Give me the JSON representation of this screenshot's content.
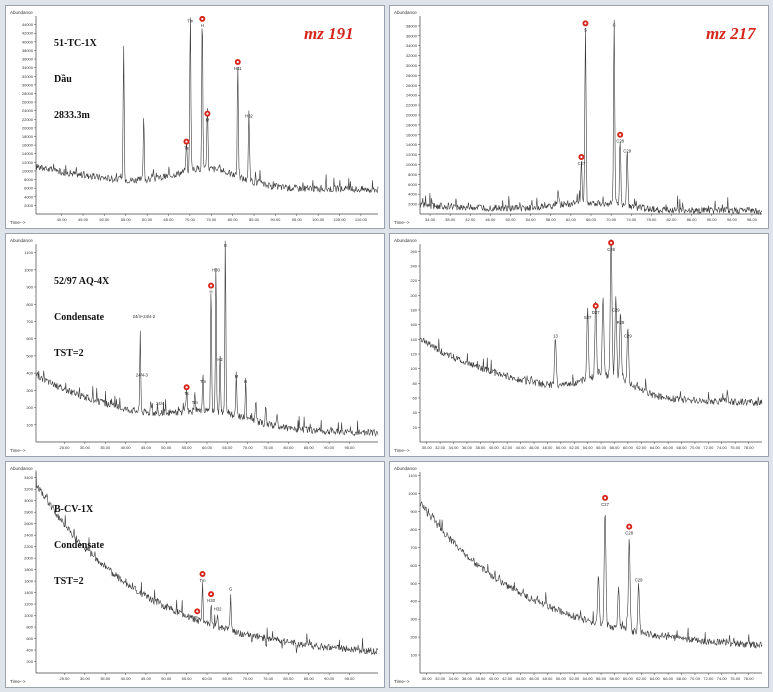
{
  "figure": {
    "rows": [
      {
        "sample_name": "51-TC-1X",
        "sample_type": "Dầu",
        "sample_extra": "2833.3m"
      },
      {
        "sample_name": "52/97 AQ-4X",
        "sample_type": "Condensate",
        "sample_extra": "TST=2"
      },
      {
        "sample_name": "B-CV-1X",
        "sample_type": "Condensate",
        "sample_extra": "TST=2"
      }
    ],
    "col_titles": [
      "mz 191",
      "mz 217"
    ],
    "colors": {
      "trace": "#3a3a3a",
      "marker": "#d6261c",
      "frame": "#9aa3ad"
    }
  },
  "chart_data": [
    {
      "type": "line",
      "row": 0,
      "col": 0,
      "ylabel": "Abundance",
      "xlabel": "Time-->",
      "xlim": [
        34,
        114
      ],
      "ylim": [
        0,
        46000
      ],
      "x_ticks": [
        "40.00",
        "45.00",
        "50.00",
        "55.00",
        "60.00",
        "65.00",
        "70.00",
        "75.00",
        "80.00",
        "85.00",
        "90.00",
        "95.00",
        "100.00",
        "105.00",
        "110.00"
      ],
      "y_ticks": [
        "2000",
        "4000",
        "6000",
        "8000",
        "10000",
        "12000",
        "14000",
        "16000",
        "18000",
        "20000",
        "22000",
        "24000",
        "26000",
        "28000",
        "30000",
        "32000",
        "34000",
        "36000",
        "38000",
        "40000",
        "42000",
        "44000"
      ],
      "baseline": {
        "start": 11000,
        "end": 5500,
        "hump_center": 74,
        "hump_height": 4000,
        "hump_width": 10
      },
      "peaks": [
        {
          "x": 54.5,
          "y": 39000
        },
        {
          "x": 59.2,
          "y": 22000
        },
        {
          "x": 69.2,
          "y": 14500,
          "label": "Ts",
          "marked": true
        },
        {
          "x": 70.1,
          "y": 44000,
          "label": "Tm"
        },
        {
          "x": 72.9,
          "y": 43000,
          "label": "H",
          "marked": true
        },
        {
          "x": 74.1,
          "y": 21000,
          "label": "M",
          "marked": true
        },
        {
          "x": 81.2,
          "y": 33000,
          "label": "H31",
          "marked": true
        },
        {
          "x": 83.8,
          "y": 22000,
          "label": "H32"
        }
      ]
    },
    {
      "type": "line",
      "row": 0,
      "col": 1,
      "ylabel": "Abundance",
      "xlabel": "Time-->",
      "xlim": [
        32,
        100
      ],
      "ylim": [
        0,
        40000
      ],
      "x_ticks": [
        "34.00",
        "38.00",
        "42.00",
        "46.00",
        "50.00",
        "54.00",
        "58.00",
        "62.00",
        "66.00",
        "70.00",
        "74.00",
        "78.00",
        "82.00",
        "86.00",
        "90.00",
        "94.00",
        "98.00"
      ],
      "y_ticks": [
        "2000",
        "4000",
        "6000",
        "8000",
        "10000",
        "12000",
        "14000",
        "16000",
        "18000",
        "20000",
        "22000",
        "24000",
        "26000",
        "28000",
        "30000",
        "32000",
        "34000",
        "36000",
        "38000"
      ],
      "baseline": {
        "start": 1800,
        "end": 600,
        "hump_center": 66,
        "hump_height": 1500,
        "hump_width": 9
      },
      "peaks": [
        {
          "x": 59.5,
          "y": 4000
        },
        {
          "x": 64.1,
          "y": 9500,
          "label": "C27",
          "marked": true
        },
        {
          "x": 64.9,
          "y": 36500,
          "label": "S",
          "marked": true
        },
        {
          "x": 70.6,
          "y": 37500,
          "label": "C"
        },
        {
          "x": 71.8,
          "y": 14000,
          "label": "C28",
          "marked": true
        },
        {
          "x": 73.2,
          "y": 12000,
          "label": "C29"
        }
      ]
    },
    {
      "type": "line",
      "row": 1,
      "col": 0,
      "ylabel": "Abundance",
      "xlabel": "Time-->",
      "xlim": [
        18,
        102
      ],
      "ylim": [
        0,
        1150
      ],
      "x_ticks": [
        "25.00",
        "30.00",
        "35.00",
        "40.00",
        "45.00",
        "50.00",
        "55.00",
        "60.00",
        "65.00",
        "70.00",
        "75.00",
        "80.00",
        "85.00",
        "90.00",
        "95.00"
      ],
      "y_ticks": [
        "100",
        "200",
        "300",
        "400",
        "500",
        "600",
        "700",
        "800",
        "900",
        "1000",
        "1100"
      ],
      "baseline": {
        "start": 390,
        "end": 40,
        "hump_center": 62,
        "hump_height": 70,
        "hump_width": 12
      },
      "annotations": [
        {
          "x": 44.5,
          "y": 720,
          "text": "24/4+24/4-2"
        },
        {
          "x": 44.0,
          "y": 380,
          "text": "24/4-3"
        },
        {
          "x": 48.5,
          "y": 215,
          "text": "24/4"
        }
      ],
      "peaks": [
        {
          "x": 43.6,
          "y": 640
        },
        {
          "x": 46.2,
          "y": 220
        },
        {
          "x": 55.0,
          "y": 260,
          "label": "Ts",
          "marked": true
        },
        {
          "x": 57.0,
          "y": 210,
          "label": "Tm"
        },
        {
          "x": 59.0,
          "y": 330,
          "label": "Tm"
        },
        {
          "x": 61.0,
          "y": 850,
          "label": "H",
          "marked": true
        },
        {
          "x": 62.2,
          "y": 980,
          "label": "H30"
        },
        {
          "x": 63.2,
          "y": 460,
          "label": "H2"
        },
        {
          "x": 64.5,
          "y": 1120,
          "label": "G"
        },
        {
          "x": 67.2,
          "y": 360,
          "label": "M"
        },
        {
          "x": 69.5,
          "y": 330,
          "label": "H"
        },
        {
          "x": 72.0,
          "y": 230
        },
        {
          "x": 74.5,
          "y": 180
        },
        {
          "x": 77.2,
          "y": 150
        }
      ]
    },
    {
      "type": "line",
      "row": 1,
      "col": 1,
      "ylabel": "Abundance",
      "xlabel": "Time-->",
      "xlim": [
        29,
        80
      ],
      "ylim": [
        0,
        270
      ],
      "x_ticks": [
        "30.00",
        "32.00",
        "34.00",
        "36.00",
        "38.00",
        "40.00",
        "42.00",
        "44.00",
        "46.00",
        "48.00",
        "50.00",
        "52.00",
        "54.00",
        "56.00",
        "58.00",
        "60.00",
        "62.00",
        "64.00",
        "66.00",
        "68.00",
        "70.00",
        "72.00",
        "74.00",
        "76.00",
        "78.00"
      ],
      "y_ticks": [
        "20",
        "40",
        "60",
        "80",
        "100",
        "120",
        "140",
        "160",
        "180",
        "200",
        "220",
        "240",
        "260"
      ],
      "baseline": {
        "start": 140,
        "end": 50,
        "hump_center": 57,
        "hump_height": 25,
        "hump_width": 5
      },
      "peaks": [
        {
          "x": 49.2,
          "y": 140,
          "label": "13"
        },
        {
          "x": 54.0,
          "y": 165,
          "label": "S27"
        },
        {
          "x": 55.2,
          "y": 172,
          "label": "D27",
          "marked": true
        },
        {
          "x": 56.3,
          "y": 175
        },
        {
          "x": 57.5,
          "y": 258,
          "label": "C28",
          "marked": true
        },
        {
          "x": 58.2,
          "y": 175,
          "label": "C29"
        },
        {
          "x": 58.9,
          "y": 158,
          "label": "R28"
        },
        {
          "x": 60.0,
          "y": 140,
          "label": "C29"
        }
      ]
    },
    {
      "type": "line",
      "row": 2,
      "col": 0,
      "ylabel": "Abundance",
      "xlabel": "Time-->",
      "xlim": [
        18,
        102
      ],
      "ylim": [
        0,
        3500
      ],
      "x_ticks": [
        "25.00",
        "30.00",
        "35.00",
        "40.00",
        "45.00",
        "50.00",
        "55.00",
        "60.00",
        "65.00",
        "70.00",
        "75.00",
        "80.00",
        "85.00",
        "90.00",
        "95.00"
      ],
      "y_ticks": [
        "200",
        "400",
        "600",
        "800",
        "1000",
        "1200",
        "1400",
        "1600",
        "1800",
        "2000",
        "2200",
        "2400",
        "2600",
        "2800",
        "3000",
        "3200",
        "3400"
      ],
      "baseline": {
        "start": 3300,
        "end": 250,
        "hump_center": 80,
        "hump_height": 0,
        "hump_width": 10
      },
      "peaks": [
        {
          "x": 57.6,
          "y": 900,
          "label": "Ts",
          "marked": true
        },
        {
          "x": 58.9,
          "y": 1550,
          "label": "Tm",
          "marked": true
        },
        {
          "x": 61.0,
          "y": 1200,
          "label": "H30",
          "marked": true
        },
        {
          "x": 62.6,
          "y": 1050,
          "label": "H32"
        },
        {
          "x": 65.8,
          "y": 1400,
          "label": "G"
        },
        {
          "x": 68.5,
          "y": 650
        },
        {
          "x": 71.0,
          "y": 520
        },
        {
          "x": 74.5,
          "y": 440
        },
        {
          "x": 78.5,
          "y": 420
        },
        {
          "x": 82.0,
          "y": 380
        }
      ]
    },
    {
      "type": "line",
      "row": 2,
      "col": 1,
      "ylabel": "Abundance",
      "xlabel": "Time-->",
      "xlim": [
        29,
        80
      ],
      "ylim": [
        0,
        1120
      ],
      "x_ticks": [
        "30.00",
        "32.00",
        "34.00",
        "36.00",
        "38.00",
        "40.00",
        "42.00",
        "44.00",
        "46.00",
        "48.00",
        "50.00",
        "52.00",
        "54.00",
        "56.00",
        "58.00",
        "60.00",
        "62.00",
        "64.00",
        "66.00",
        "68.00",
        "70.00",
        "72.00",
        "74.00",
        "76.00",
        "78.00"
      ],
      "y_ticks": [
        "100",
        "200",
        "300",
        "400",
        "500",
        "600",
        "700",
        "800",
        "900",
        "1000",
        "1100"
      ],
      "baseline": {
        "start": 950,
        "end": 120,
        "hump_center": 60,
        "hump_height": 0,
        "hump_width": 10
      },
      "peaks": [
        {
          "x": 55.6,
          "y": 560
        },
        {
          "x": 56.6,
          "y": 920,
          "label": "C27",
          "marked": true
        },
        {
          "x": 58.6,
          "y": 480
        },
        {
          "x": 60.2,
          "y": 760,
          "label": "C28",
          "marked": true
        },
        {
          "x": 61.6,
          "y": 500,
          "label": "C29"
        }
      ]
    }
  ]
}
